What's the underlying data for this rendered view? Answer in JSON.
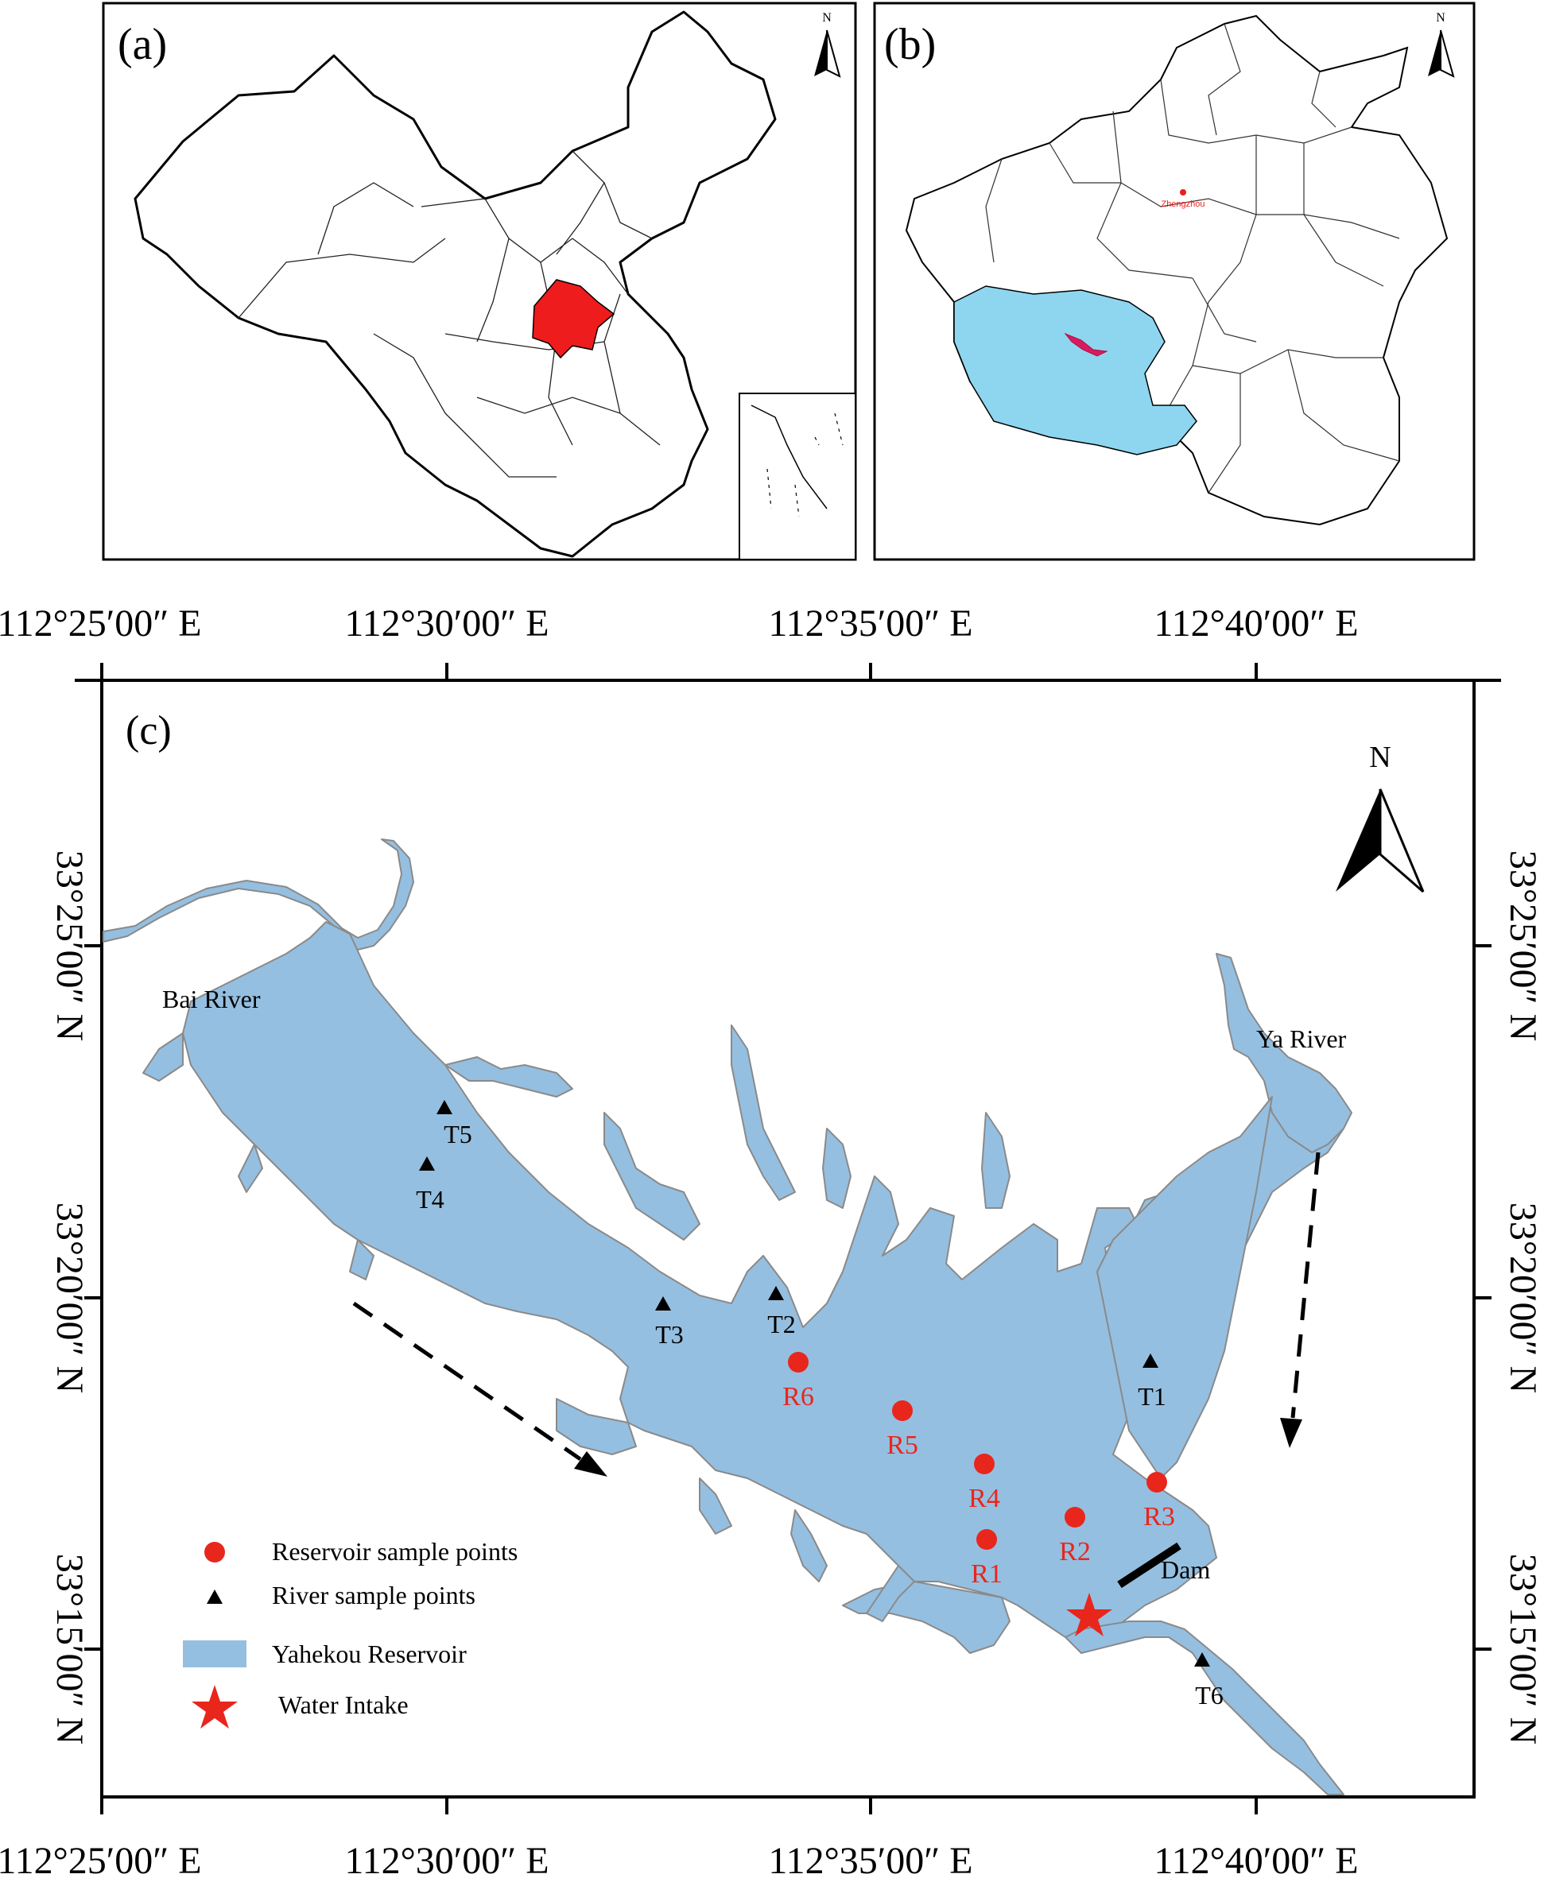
{
  "panels": {
    "a": {
      "label": "(a)",
      "north": "N"
    },
    "b": {
      "label": "(b)",
      "north": "N",
      "city": "Zhengzhou"
    },
    "c": {
      "label": "(c)",
      "north": "N"
    }
  },
  "coords": {
    "lon_ticks": [
      "112°25′00″ E",
      "112°30′00″ E",
      "112°35′00″ E",
      "112°40′00″ E"
    ],
    "lat_ticks": [
      "33°25′00″ N",
      "33°20′00″ N",
      "33°15′00″ N"
    ]
  },
  "rivers": {
    "bai": "Bai River",
    "ya": "Ya River"
  },
  "dam_label": "Dam",
  "reservoir_points": [
    {
      "id": "R6"
    },
    {
      "id": "R5"
    },
    {
      "id": "R4"
    },
    {
      "id": "R1"
    },
    {
      "id": "R2"
    },
    {
      "id": "R3"
    }
  ],
  "river_points": [
    {
      "id": "T5"
    },
    {
      "id": "T4"
    },
    {
      "id": "T3"
    },
    {
      "id": "T2"
    },
    {
      "id": "T1"
    },
    {
      "id": "T6"
    }
  ],
  "legend": {
    "reservoir": "Reservoir sample points",
    "river": "River sample points",
    "area": "Yahekou Reservoir",
    "intake": "Water Intake"
  },
  "colors": {
    "reservoir_fill": "#95bfe0",
    "reservoir_edge": "#8a8a8a",
    "sample_red": "#e8261c",
    "henan_red": "#ee1c1c",
    "nanyang_blue": "#8ed6f0"
  }
}
